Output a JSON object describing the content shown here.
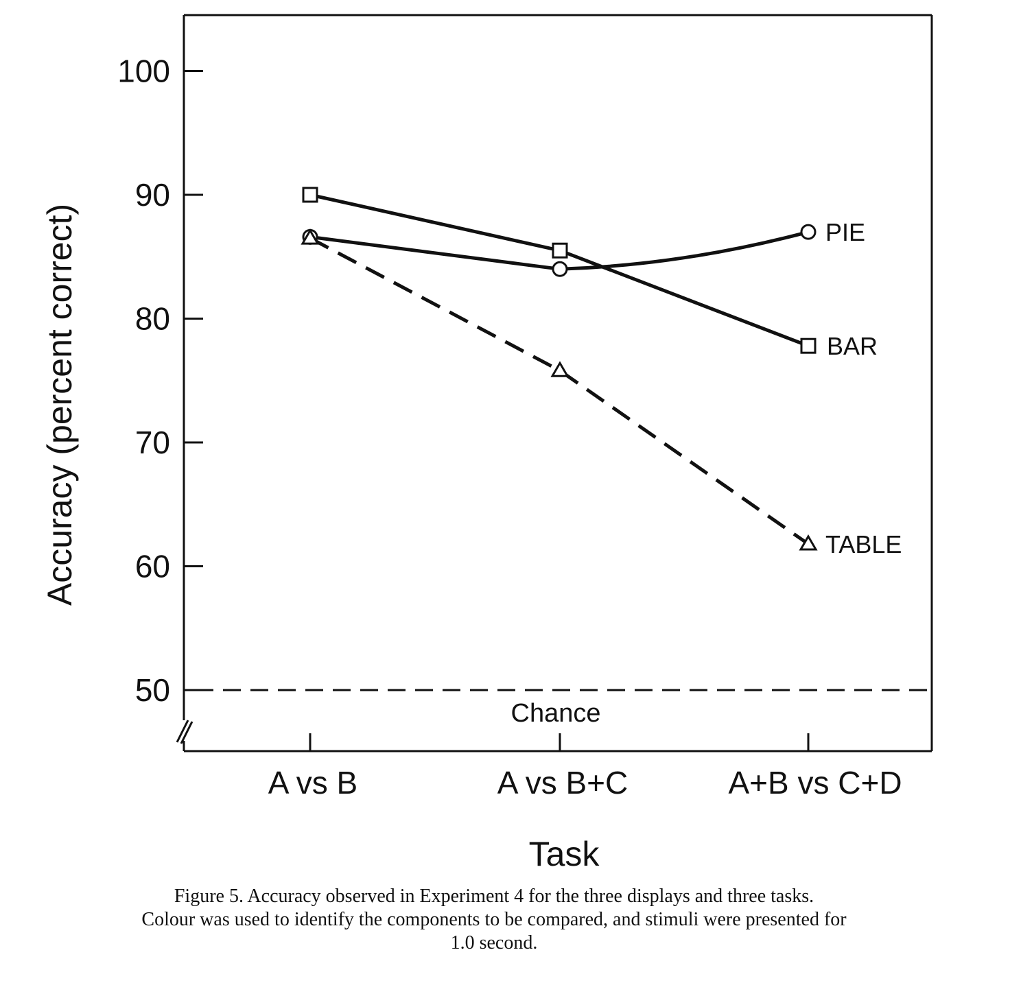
{
  "chart_data": {
    "type": "line",
    "categories": [
      "A vs B",
      "A vs B+C",
      "A+B vs C+D"
    ],
    "series": [
      {
        "name": "PIE",
        "values": [
          86.6,
          84.0,
          87.0
        ],
        "marker": "circle",
        "dashed": false
      },
      {
        "name": "BAR",
        "values": [
          90.0,
          85.5,
          77.8
        ],
        "marker": "square",
        "dashed": false
      },
      {
        "name": "TABLE",
        "values": [
          86.5,
          75.8,
          61.8
        ],
        "marker": "triangle",
        "dashed": true
      }
    ],
    "reference_lines": [
      {
        "label": "Chance",
        "value": 50,
        "dashed": true
      }
    ],
    "xlabel": "Task",
    "ylabel": "Accuracy (percent correct)",
    "ylim": [
      45,
      105
    ],
    "yticks": [
      50,
      60,
      70,
      80,
      90,
      100
    ],
    "grid": false,
    "legend": "inline labels at line ends",
    "axis_break": true,
    "colors": {
      "ink": "#111111",
      "background": "#ffffff"
    }
  },
  "caption": {
    "line1": "Figure 5.    Accuracy observed in Experiment 4 for the three displays and three tasks.",
    "line2": "Colour was used to identify the components to be compared, and stimuli were presented for",
    "line3": "1.0 second."
  }
}
